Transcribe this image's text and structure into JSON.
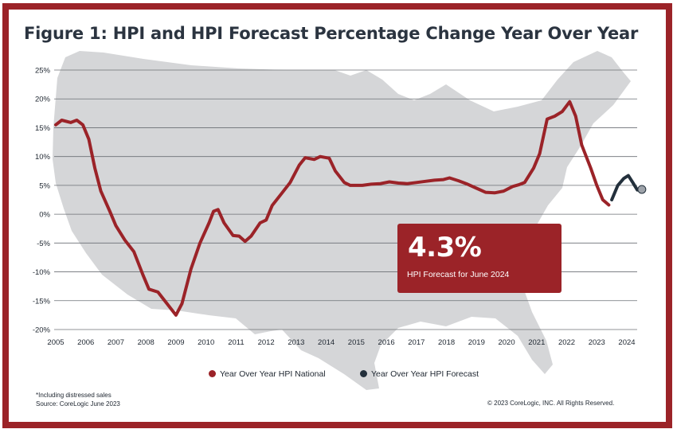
{
  "title": "Figure 1: HPI and HPI Forecast Percentage Change Year Over Year",
  "callout": {
    "value": "4.3%",
    "label": "HPI Forecast for June 2024"
  },
  "legend": {
    "national": "Year Over Year HPI National",
    "forecast": "Year Over Year HPI Forecast"
  },
  "footnote": {
    "line1": "*Including distressed sales",
    "line2": "Source: CoreLogic June 2023"
  },
  "copyright": "© 2023 CoreLogic, INC. All Rights Reserved.",
  "colors": {
    "national": "#9b2328",
    "forecast": "#23303c",
    "map": "#d5d6d8",
    "frame": "#9b2328"
  },
  "chart_data": {
    "type": "line",
    "title": "Figure 1: HPI and HPI Forecast Percentage Change Year Over Year",
    "xlabel": "",
    "ylabel": "",
    "xlim": [
      2005,
      2024.75
    ],
    "ylim": [
      -20,
      25
    ],
    "x_ticks": [
      "2005",
      "2006",
      "2007",
      "2008",
      "2009",
      "2010",
      "2011",
      "2012",
      "2013",
      "2014",
      "2015",
      "2016",
      "2017",
      "2018",
      "2019",
      "2020",
      "2021",
      "2022",
      "2023",
      "2024"
    ],
    "y_ticks": [
      "25%",
      "20%",
      "15%",
      "10%",
      "5%",
      "0%",
      "-5%",
      "-10%",
      "-15%",
      "-20%"
    ],
    "grid": true,
    "background_image": "us-map-silhouette",
    "series": [
      {
        "name": "Year Over Year HPI National",
        "color": "#9b2328",
        "points": [
          [
            2005.0,
            15.5
          ],
          [
            2005.2,
            16.3
          ],
          [
            2005.5,
            15.9
          ],
          [
            2005.7,
            16.3
          ],
          [
            2005.9,
            15.5
          ],
          [
            2006.1,
            13.0
          ],
          [
            2006.3,
            8.0
          ],
          [
            2006.5,
            4.0
          ],
          [
            2006.8,
            0.5
          ],
          [
            2007.0,
            -2.0
          ],
          [
            2007.3,
            -4.5
          ],
          [
            2007.6,
            -6.5
          ],
          [
            2007.9,
            -10.5
          ],
          [
            2008.1,
            -13.0
          ],
          [
            2008.4,
            -13.5
          ],
          [
            2008.7,
            -15.5
          ],
          [
            2009.0,
            -17.5
          ],
          [
            2009.2,
            -15.5
          ],
          [
            2009.5,
            -9.5
          ],
          [
            2009.8,
            -5.0
          ],
          [
            2010.1,
            -1.5
          ],
          [
            2010.25,
            0.5
          ],
          [
            2010.4,
            0.8
          ],
          [
            2010.6,
            -1.5
          ],
          [
            2010.9,
            -3.7
          ],
          [
            2011.1,
            -3.8
          ],
          [
            2011.3,
            -4.7
          ],
          [
            2011.5,
            -3.8
          ],
          [
            2011.8,
            -1.5
          ],
          [
            2012.0,
            -1.0
          ],
          [
            2012.2,
            1.5
          ],
          [
            2012.5,
            3.5
          ],
          [
            2012.8,
            5.5
          ],
          [
            2013.1,
            8.5
          ],
          [
            2013.3,
            9.8
          ],
          [
            2013.6,
            9.5
          ],
          [
            2013.8,
            10.0
          ],
          [
            2014.1,
            9.7
          ],
          [
            2014.3,
            7.5
          ],
          [
            2014.6,
            5.5
          ],
          [
            2014.8,
            5.0
          ],
          [
            2015.2,
            5.0
          ],
          [
            2015.5,
            5.2
          ],
          [
            2015.8,
            5.3
          ],
          [
            2016.1,
            5.6
          ],
          [
            2016.4,
            5.4
          ],
          [
            2016.7,
            5.3
          ],
          [
            2017.0,
            5.5
          ],
          [
            2017.3,
            5.7
          ],
          [
            2017.6,
            5.9
          ],
          [
            2017.9,
            6.0
          ],
          [
            2018.1,
            6.3
          ],
          [
            2018.4,
            5.8
          ],
          [
            2018.7,
            5.2
          ],
          [
            2019.0,
            4.5
          ],
          [
            2019.3,
            3.8
          ],
          [
            2019.6,
            3.7
          ],
          [
            2019.9,
            4.0
          ],
          [
            2020.2,
            4.8
          ],
          [
            2020.4,
            5.1
          ],
          [
            2020.6,
            5.5
          ],
          [
            2020.9,
            8.0
          ],
          [
            2021.1,
            10.5
          ],
          [
            2021.35,
            16.5
          ],
          [
            2021.6,
            17.0
          ],
          [
            2021.85,
            17.8
          ],
          [
            2022.1,
            19.5
          ],
          [
            2022.3,
            17.0
          ],
          [
            2022.5,
            12.0
          ],
          [
            2022.8,
            8.0
          ],
          [
            2023.0,
            5.0
          ],
          [
            2023.2,
            2.5
          ],
          [
            2023.4,
            1.6
          ]
        ]
      },
      {
        "name": "Year Over Year HPI Forecast",
        "color": "#23303c",
        "points": [
          [
            2023.5,
            2.5
          ],
          [
            2023.7,
            5.0
          ],
          [
            2023.9,
            6.2
          ],
          [
            2024.05,
            6.7
          ],
          [
            2024.2,
            5.5
          ],
          [
            2024.35,
            4.2
          ],
          [
            2024.5,
            4.3
          ]
        ]
      }
    ]
  }
}
